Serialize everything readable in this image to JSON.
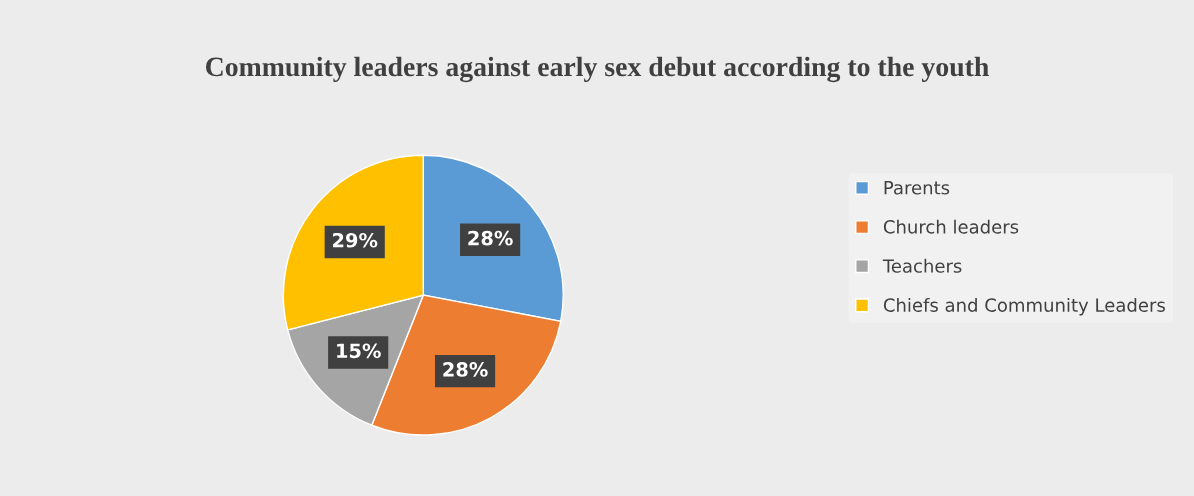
{
  "chart_data": {
    "type": "pie",
    "title": "Community leaders against early sex debut according to the youth",
    "categories": [
      "Parents",
      "Church leaders",
      "Teachers",
      "Chiefs and Community Leaders"
    ],
    "values": [
      28,
      28,
      15,
      29
    ],
    "colors": [
      "#5b9bd5",
      "#ed7d31",
      "#a5a5a5",
      "#ffc000"
    ],
    "value_labels": [
      "28%",
      "28%",
      "15%",
      "29%"
    ],
    "legend": "right"
  }
}
